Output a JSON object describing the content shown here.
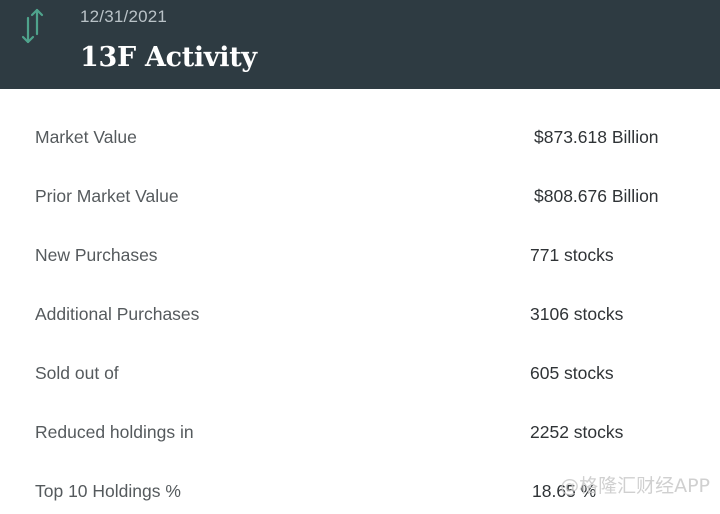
{
  "header": {
    "date": "12/31/2021",
    "title": "13F Activity",
    "icon": "sort-arrows-icon",
    "background_color": "#2e3b42",
    "icon_color": "#4fa38c"
  },
  "rows": [
    {
      "label": "Market Value",
      "value": "$873.618 Billion"
    },
    {
      "label": "Prior Market Value",
      "value": "$808.676 Billion"
    },
    {
      "label": "New Purchases",
      "value": "771 stocks"
    },
    {
      "label": "Additional Purchases",
      "value": "3106 stocks"
    },
    {
      "label": "Sold out of",
      "value": "605 stocks"
    },
    {
      "label": "Reduced holdings in",
      "value": "2252 stocks"
    },
    {
      "label": "Top 10 Holdings %",
      "value": "18.65 %"
    }
  ],
  "watermark": "@格隆汇财经APP"
}
